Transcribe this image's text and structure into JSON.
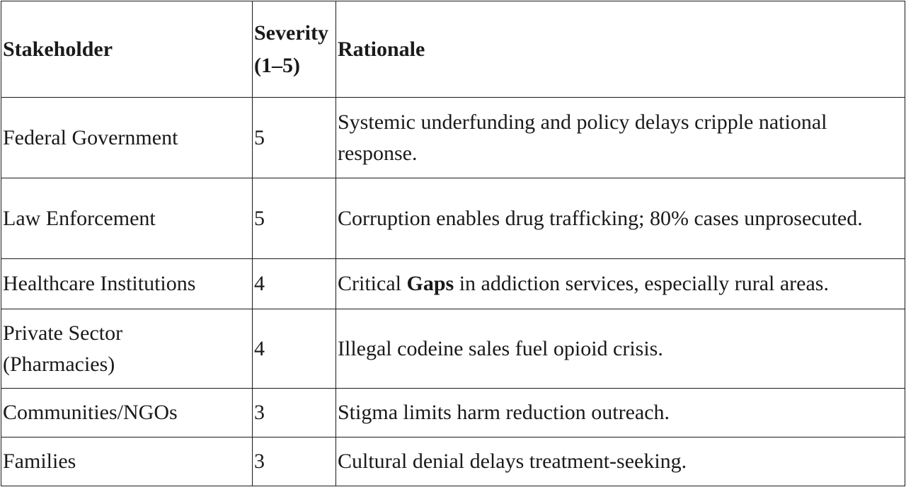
{
  "table": {
    "headers": {
      "stakeholder": "Stakeholder",
      "severity_line1": "Severity",
      "severity_line2": "(1–5)",
      "rationale": "Rationale"
    },
    "rows": [
      {
        "stakeholder": "Federal Government",
        "severity": "5",
        "rationale": "Systemic underfunding and policy delays cripple national response."
      },
      {
        "stakeholder": "Law Enforcement",
        "severity": "5",
        "rationale": "Corruption enables drug trafficking; 80% cases unprosecuted."
      },
      {
        "stakeholder": "Healthcare Institutions",
        "severity": "4",
        "rationale_before": "Critical ",
        "rationale_bold": "Gaps",
        "rationale_after": " in addiction services, especially rural areas."
      },
      {
        "stakeholder_line1": "Private Sector",
        "stakeholder_line2": "(Pharmacies)",
        "severity": "4",
        "rationale": "Illegal codeine sales fuel opioid crisis."
      },
      {
        "stakeholder": "Communities/NGOs",
        "severity": "3",
        "rationale": "Stigma limits harm reduction outreach."
      },
      {
        "stakeholder": "Families",
        "severity": "3",
        "rationale": "Cultural denial delays treatment-seeking."
      }
    ]
  }
}
